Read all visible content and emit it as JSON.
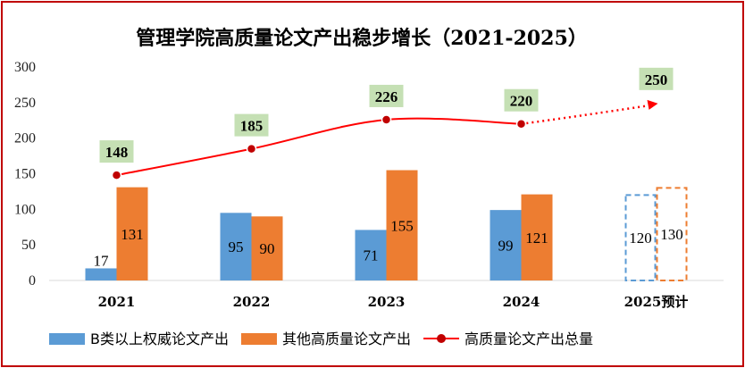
{
  "chart_data": {
    "type": "bar",
    "title": "管理学院高质量论文产出稳步增长（2021-2025）",
    "categories": [
      "2021",
      "2022",
      "2023",
      "2024",
      "2025预计"
    ],
    "yticks": [
      "0",
      "50",
      "100",
      "150",
      "200",
      "250",
      "300"
    ],
    "ylim": [
      0,
      300
    ],
    "grid": false,
    "legend_position": "bottom",
    "series": [
      {
        "name": "B类以上权威论文产出",
        "kind": "bar",
        "color": "#5b9bd5",
        "values": [
          17,
          95,
          71,
          99,
          120
        ],
        "labels": [
          "17",
          "95",
          "71",
          "99",
          "120"
        ]
      },
      {
        "name": "其他高质量论文产出",
        "kind": "bar",
        "color": "#ed7d31",
        "values": [
          131,
          90,
          155,
          121,
          130
        ],
        "labels": [
          "131",
          "90",
          "155",
          "121",
          "130"
        ]
      },
      {
        "name": "高质量论文产出总量",
        "kind": "line",
        "color": "#ff0000",
        "marker_color": "#c00000",
        "values": [
          148,
          185,
          226,
          220,
          250
        ],
        "labels": [
          "148",
          "185",
          "226",
          "220",
          "250"
        ]
      }
    ],
    "projected_category": "2025预计",
    "label_box_color": "#c5e0b4"
  }
}
